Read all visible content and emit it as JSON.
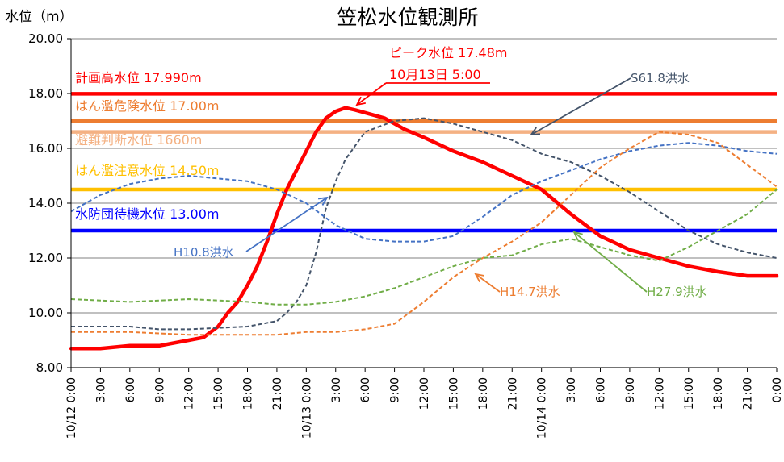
{
  "chart_data": {
    "type": "line",
    "title": "笠松水位観測所",
    "ylabel": "水位（m）",
    "ylim": [
      8,
      20
    ],
    "yticks": [
      "8.00",
      "10.00",
      "12.00",
      "14.00",
      "16.00",
      "18.00",
      "20.00"
    ],
    "grid": true,
    "x_start_label": "10/12 0:00",
    "x_step_hours": 3,
    "x_ticks": [
      {
        "time": "0:00",
        "date": "10/12"
      },
      {
        "time": "3:00",
        "date": ""
      },
      {
        "time": "6:00",
        "date": ""
      },
      {
        "time": "9:00",
        "date": ""
      },
      {
        "time": "12:00",
        "date": ""
      },
      {
        "time": "15:00",
        "date": ""
      },
      {
        "time": "18:00",
        "date": ""
      },
      {
        "time": "21:00",
        "date": ""
      },
      {
        "time": "0:00",
        "date": "10/13"
      },
      {
        "time": "3:00",
        "date": ""
      },
      {
        "time": "6:00",
        "date": ""
      },
      {
        "time": "9:00",
        "date": ""
      },
      {
        "time": "12:00",
        "date": ""
      },
      {
        "time": "15:00",
        "date": ""
      },
      {
        "time": "18:00",
        "date": ""
      },
      {
        "time": "21:00",
        "date": ""
      },
      {
        "time": "0:00",
        "date": "10/14"
      },
      {
        "time": "3:00",
        "date": ""
      },
      {
        "time": "6:00",
        "date": ""
      },
      {
        "time": "9:00",
        "date": ""
      },
      {
        "time": "12:00",
        "date": ""
      },
      {
        "time": "15:00",
        "date": ""
      },
      {
        "time": "18:00",
        "date": ""
      },
      {
        "time": "21:00",
        "date": ""
      },
      {
        "time": "0:00",
        "date": ""
      }
    ],
    "reference_levels": [
      {
        "label": "計画高水位",
        "value_text": "17.990m",
        "value": 17.99,
        "color": "#ff0000"
      },
      {
        "label": "はん濫危険水位",
        "value_text": "17.00m",
        "value": 17.0,
        "color": "#ed7d31"
      },
      {
        "label": "避難判断水位",
        "value_text": "1660m",
        "value": 16.6,
        "color": "#f4b183"
      },
      {
        "label": "はん濫注意水位",
        "value_text": "14.50m",
        "value": 14.5,
        "color": "#ffc000"
      },
      {
        "label": "水防団待機水位",
        "value_text": "13.00m",
        "value": 13.0,
        "color": "#0000ff"
      }
    ],
    "series": [
      {
        "name": "",
        "color": "#ff0000",
        "style": "solid",
        "x_hours": [
          0,
          3,
          6,
          9,
          12,
          13.5,
          15,
          16,
          17,
          18,
          19,
          20,
          21,
          22,
          23,
          24,
          25,
          26,
          27,
          28,
          29,
          30,
          31,
          32,
          33,
          34,
          36,
          39,
          42,
          45,
          48,
          51,
          54,
          57,
          60,
          63,
          66,
          69,
          72
        ],
        "values": [
          8.7,
          8.7,
          8.8,
          8.8,
          9.0,
          9.1,
          9.5,
          10.0,
          10.4,
          11.0,
          11.7,
          12.6,
          13.6,
          14.5,
          15.2,
          15.9,
          16.6,
          17.1,
          17.35,
          17.48,
          17.4,
          17.3,
          17.2,
          17.1,
          16.9,
          16.7,
          16.4,
          15.9,
          15.5,
          15.0,
          14.5,
          13.6,
          12.8,
          12.3,
          12.0,
          11.7,
          11.5,
          11.35,
          11.35
        ]
      },
      {
        "name": "S61.8洪水",
        "color": "#44546a",
        "style": "dashed",
        "x_hours": [
          0,
          6,
          9,
          12,
          18,
          21,
          22,
          23,
          24,
          25,
          26,
          27,
          28,
          30,
          33,
          36,
          39,
          42,
          45,
          48,
          51,
          54,
          57,
          60,
          63,
          66,
          69,
          72
        ],
        "values": [
          9.5,
          9.5,
          9.4,
          9.4,
          9.5,
          9.7,
          10.0,
          10.4,
          11.0,
          12.2,
          13.8,
          14.8,
          15.6,
          16.6,
          17.0,
          17.1,
          16.9,
          16.6,
          16.3,
          15.8,
          15.5,
          15.0,
          14.4,
          13.7,
          13.0,
          12.5,
          12.2,
          12.0
        ]
      },
      {
        "name": "H10.8洪水",
        "color": "#4472c4",
        "style": "dashed",
        "x_hours": [
          0,
          3,
          6,
          9,
          12,
          15,
          18,
          21,
          24,
          27,
          30,
          33,
          36,
          39,
          42,
          45,
          48,
          51,
          54,
          57,
          60,
          63,
          66,
          69,
          72
        ],
        "values": [
          13.7,
          14.3,
          14.7,
          14.9,
          15.0,
          14.9,
          14.8,
          14.5,
          14.0,
          13.2,
          12.7,
          12.6,
          12.6,
          12.8,
          13.5,
          14.3,
          14.8,
          15.2,
          15.6,
          15.9,
          16.1,
          16.2,
          16.1,
          15.9,
          15.8
        ]
      },
      {
        "name": "H14.7洪水",
        "color": "#ed7d31",
        "style": "dashed",
        "x_hours": [
          0,
          6,
          12,
          18,
          21,
          24,
          27,
          30,
          33,
          36,
          39,
          42,
          45,
          48,
          51,
          54,
          57,
          60,
          63,
          66,
          69,
          72
        ],
        "values": [
          9.3,
          9.3,
          9.2,
          9.2,
          9.2,
          9.3,
          9.3,
          9.4,
          9.6,
          10.4,
          11.3,
          12.0,
          12.6,
          13.3,
          14.3,
          15.3,
          16.0,
          16.6,
          16.5,
          16.2,
          15.4,
          14.6
        ]
      },
      {
        "name": "H27.9洪水",
        "color": "#70ad47",
        "style": "dashed",
        "x_hours": [
          0,
          6,
          12,
          18,
          21,
          24,
          27,
          30,
          33,
          36,
          39,
          42,
          45,
          48,
          51,
          54,
          57,
          60,
          63,
          66,
          69,
          72
        ],
        "values": [
          10.5,
          10.4,
          10.5,
          10.4,
          10.3,
          10.3,
          10.4,
          10.6,
          10.9,
          11.3,
          11.7,
          12.0,
          12.1,
          12.5,
          12.7,
          12.4,
          12.1,
          11.9,
          12.4,
          13.0,
          13.6,
          14.5
        ]
      }
    ],
    "annotations": {
      "peak_label": "ピーク水位  17.48m",
      "peak_time": "10月13日  5:00"
    }
  }
}
